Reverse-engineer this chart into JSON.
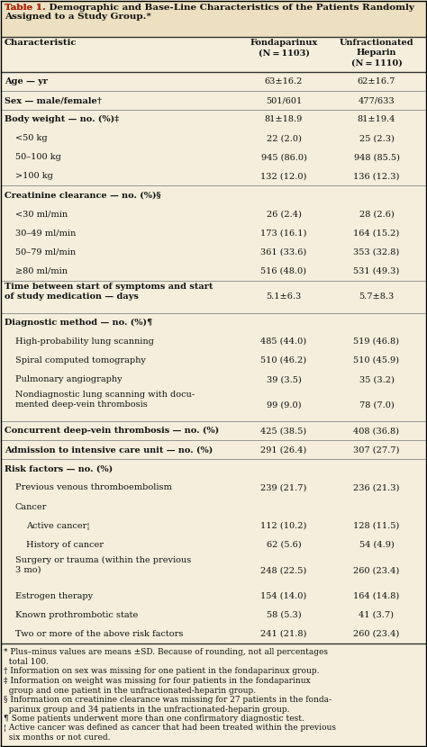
{
  "bg_color": "#f5eedc",
  "title_bg": "#ede0c0",
  "red_color": "#cc2200",
  "title1": "Table 1.",
  "title2": " Demographic and Base-Line Characteristics of the Patients Randomly\nAssigned to a Study Group.*",
  "col2_header": "Fondaparinux\n(N = 1103)",
  "col3_header": "Unfractionated\nHeparin\n(N = 1110)",
  "col1_label": "Characteristic",
  "rows": [
    {
      "label": "Age — yr",
      "c2": "63±16.2",
      "c3": "62±16.7",
      "indent": 0,
      "bold": true,
      "sep": true,
      "nlines": 1
    },
    {
      "label": "Sex — male/female†",
      "c2": "501/601",
      "c3": "477/633",
      "indent": 0,
      "bold": true,
      "sep": true,
      "nlines": 1
    },
    {
      "label": "Body weight — no. (%)‡",
      "c2": "81±18.9",
      "c3": "81±19.4",
      "indent": 0,
      "bold": true,
      "sep": false,
      "nlines": 1
    },
    {
      "label": "<50 kg",
      "c2": "22 (2.0)",
      "c3": "25 (2.3)",
      "indent": 1,
      "bold": false,
      "sep": false,
      "nlines": 1
    },
    {
      "label": "50–100 kg",
      "c2": "945 (86.0)",
      "c3": "948 (85.5)",
      "indent": 1,
      "bold": false,
      "sep": false,
      "nlines": 1
    },
    {
      "label": ">100 kg",
      "c2": "132 (12.0)",
      "c3": "136 (12.3)",
      "indent": 1,
      "bold": false,
      "sep": true,
      "nlines": 1
    },
    {
      "label": "Creatinine clearance — no. (%)§",
      "c2": "",
      "c3": "",
      "indent": 0,
      "bold": true,
      "sep": false,
      "nlines": 1
    },
    {
      "label": "<30 ml/min",
      "c2": "26 (2.4)",
      "c3": "28 (2.6)",
      "indent": 1,
      "bold": false,
      "sep": false,
      "nlines": 1
    },
    {
      "label": "30–49 ml/min",
      "c2": "173 (16.1)",
      "c3": "164 (15.2)",
      "indent": 1,
      "bold": false,
      "sep": false,
      "nlines": 1
    },
    {
      "label": "50–79 ml/min",
      "c2": "361 (33.6)",
      "c3": "353 (32.8)",
      "indent": 1,
      "bold": false,
      "sep": false,
      "nlines": 1
    },
    {
      "label": "≥80 ml/min",
      "c2": "516 (48.0)",
      "c3": "531 (49.3)",
      "indent": 1,
      "bold": false,
      "sep": true,
      "nlines": 1
    },
    {
      "label": "Time between start of symptoms and start\nof study medication — days",
      "c2": "5.1±6.3",
      "c3": "5.7±8.3",
      "indent": 0,
      "bold": true,
      "sep": true,
      "nlines": 2
    },
    {
      "label": "Diagnostic method — no. (%)¶",
      "c2": "",
      "c3": "",
      "indent": 0,
      "bold": true,
      "sep": false,
      "nlines": 1
    },
    {
      "label": "High-probability lung scanning",
      "c2": "485 (44.0)",
      "c3": "519 (46.8)",
      "indent": 1,
      "bold": false,
      "sep": false,
      "nlines": 1
    },
    {
      "label": "Spiral computed tomography",
      "c2": "510 (46.2)",
      "c3": "510 (45.9)",
      "indent": 1,
      "bold": false,
      "sep": false,
      "nlines": 1
    },
    {
      "label": "Pulmonary angiography",
      "c2": "39 (3.5)",
      "c3": "35 (3.2)",
      "indent": 1,
      "bold": false,
      "sep": false,
      "nlines": 1
    },
    {
      "label": "Nondiagnostic lung scanning with docu-\nmented deep-vein thrombosis",
      "c2": "99 (9.0)",
      "c3": "78 (7.0)",
      "indent": 1,
      "bold": false,
      "sep": true,
      "nlines": 2
    },
    {
      "label": "Concurrent deep-vein thrombosis — no. (%)",
      "c2": "425 (38.5)",
      "c3": "408 (36.8)",
      "indent": 0,
      "bold": true,
      "sep": true,
      "nlines": 1
    },
    {
      "label": "Admission to intensive care unit — no. (%)",
      "c2": "291 (26.4)",
      "c3": "307 (27.7)",
      "indent": 0,
      "bold": true,
      "sep": true,
      "nlines": 1
    },
    {
      "label": "Risk factors — no. (%)",
      "c2": "",
      "c3": "",
      "indent": 0,
      "bold": true,
      "sep": false,
      "nlines": 1
    },
    {
      "label": "Previous venous thromboembolism",
      "c2": "239 (21.7)",
      "c3": "236 (21.3)",
      "indent": 1,
      "bold": false,
      "sep": false,
      "nlines": 1
    },
    {
      "label": "Cancer",
      "c2": "",
      "c3": "",
      "indent": 1,
      "bold": false,
      "sep": false,
      "nlines": 1
    },
    {
      "label": "Active cancer¦",
      "c2": "112 (10.2)",
      "c3": "128 (11.5)",
      "indent": 2,
      "bold": false,
      "sep": false,
      "nlines": 1
    },
    {
      "label": "History of cancer",
      "c2": "62 (5.6)",
      "c3": "54 (4.9)",
      "indent": 2,
      "bold": false,
      "sep": false,
      "nlines": 1
    },
    {
      "label": "Surgery or trauma (within the previous\n3 mo)",
      "c2": "248 (22.5)",
      "c3": "260 (23.4)",
      "indent": 1,
      "bold": false,
      "sep": false,
      "nlines": 2
    },
    {
      "label": "Estrogen therapy",
      "c2": "154 (14.0)",
      "c3": "164 (14.8)",
      "indent": 1,
      "bold": false,
      "sep": false,
      "nlines": 1
    },
    {
      "label": "Known prothrombotic state",
      "c2": "58 (5.3)",
      "c3": "41 (3.7)",
      "indent": 1,
      "bold": false,
      "sep": false,
      "nlines": 1
    },
    {
      "label": "Two or more of the above risk factors",
      "c2": "241 (21.8)",
      "c3": "260 (23.4)",
      "indent": 1,
      "bold": false,
      "sep": false,
      "nlines": 1
    }
  ],
  "footnotes": [
    "* Plus–minus values are means ±SD. Because of rounding, not all percentages\n  total 100.",
    "† Information on sex was missing for one patient in the fondaparinux group.",
    "‡ Information on weight was missing for four patients in the fondaparinux\n  group and one patient in the unfractionated-heparin group.",
    "§ Information on creatinine clearance was missing for 27 patients in the fonda-\n  parinux group and 34 patients in the unfractionated-heparin group.",
    "¶ Some patients underwent more than one confirmatory diagnostic test.",
    "¦ Active cancer was defined as cancer that had been treated within the previous\n  six months or not cured."
  ]
}
